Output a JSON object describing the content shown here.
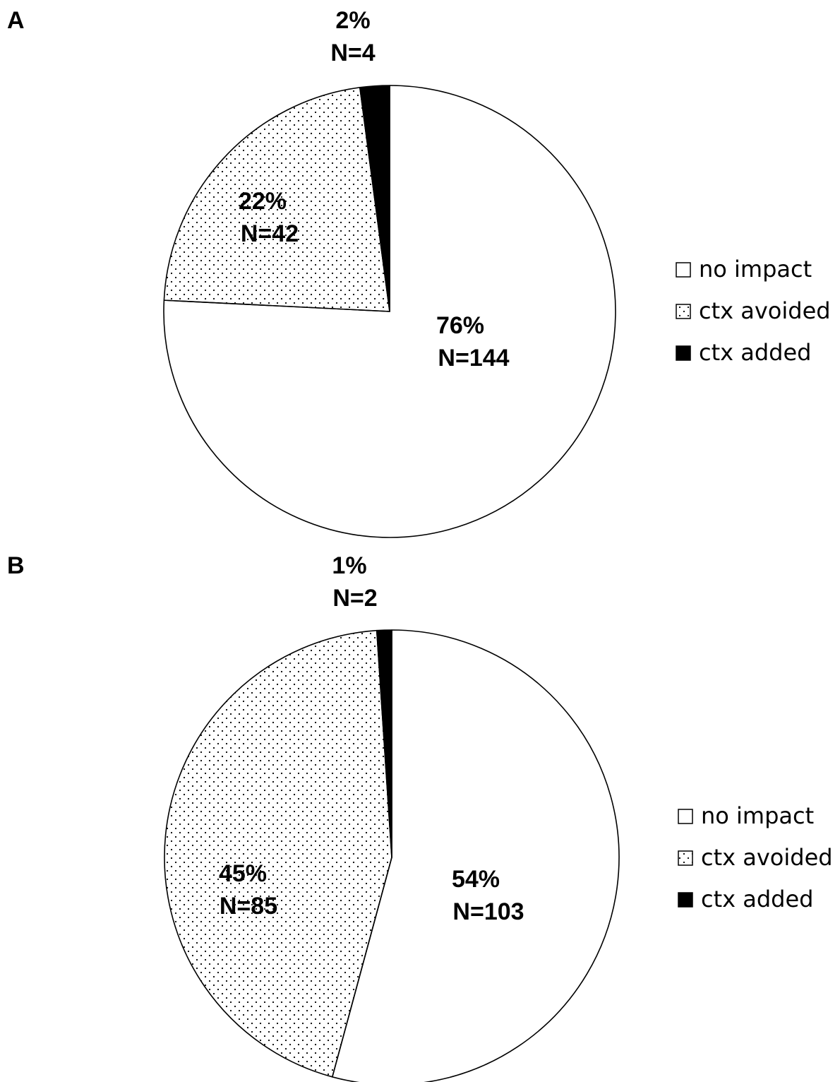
{
  "chart_data": [
    {
      "type": "pie",
      "panel": "A",
      "slices": [
        {
          "label": "no impact",
          "percent_label": "76%",
          "n_label": "N=144",
          "value": 144,
          "pattern": "white"
        },
        {
          "label": "ctx avoided",
          "percent_label": "22%",
          "n_label": "N=42",
          "value": 42,
          "pattern": "dotted"
        },
        {
          "label": "ctx added",
          "percent_label": "2%",
          "n_label": "N=4",
          "value": 4,
          "pattern": "black"
        }
      ],
      "legend": [
        "no impact",
        "ctx avoided",
        "ctx added"
      ],
      "legend_position": "right"
    },
    {
      "type": "pie",
      "panel": "B",
      "slices": [
        {
          "label": "no impact",
          "percent_label": "54%",
          "n_label": "N=103",
          "value": 103,
          "pattern": "white"
        },
        {
          "label": "ctx avoided",
          "percent_label": "45%",
          "n_label": "N=85",
          "value": 85,
          "pattern": "dotted"
        },
        {
          "label": "ctx added",
          "percent_label": "1%",
          "n_label": "N=2",
          "value": 2,
          "pattern": "black"
        }
      ],
      "legend": [
        "no impact",
        "ctx avoided",
        "ctx added"
      ],
      "legend_position": "right"
    }
  ],
  "colors": {
    "slice_outline": "#000000",
    "no_impact_fill": "#ffffff",
    "ctx_added_fill": "#000000",
    "dot_color": "#000000"
  }
}
